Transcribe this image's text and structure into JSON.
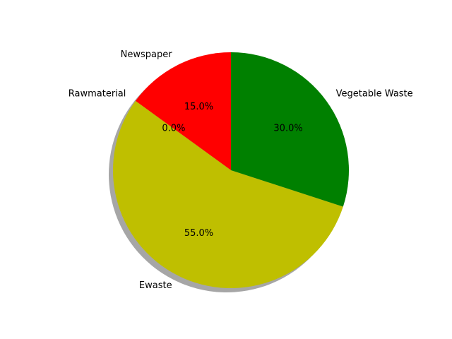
{
  "chart_data": {
    "type": "pie",
    "start_angle_deg": 90,
    "direction": "counterclockwise",
    "shadow": true,
    "title": "",
    "slices": [
      {
        "label": "Newspaper",
        "value": 15,
        "pct_label": "15.0%",
        "color": "#ff0000"
      },
      {
        "label": "Rawmaterial",
        "value": 0,
        "pct_label": "0.0%",
        "color": "#0000ff"
      },
      {
        "label": "Ewaste",
        "value": 55,
        "pct_label": "55.0%",
        "color": "#bfbf00"
      },
      {
        "label": "Vegetable Waste",
        "value": 30,
        "pct_label": "30.0%",
        "color": "#008000"
      }
    ]
  }
}
